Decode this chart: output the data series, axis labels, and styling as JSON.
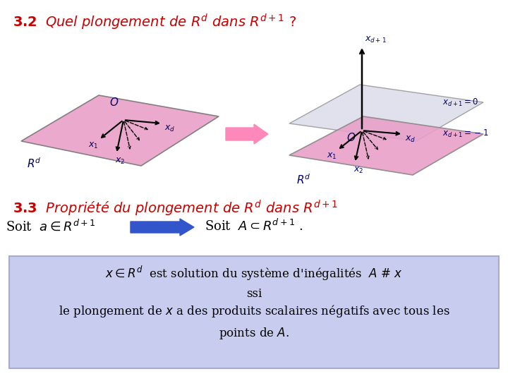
{
  "bg_color": "#ffffff",
  "title_color": "#cc0000",
  "plane_color_left": "#e8a0c8",
  "plane_color_right_upper": "#d8d8e8",
  "plane_color_right_lower": "#e8a0c8",
  "arrow_pink_color": "#ff88bb",
  "arrow_blue_color": "#3355cc",
  "label_color": "#000066",
  "box_bg": "#c8ccee",
  "box_edge": "#aaaacc"
}
